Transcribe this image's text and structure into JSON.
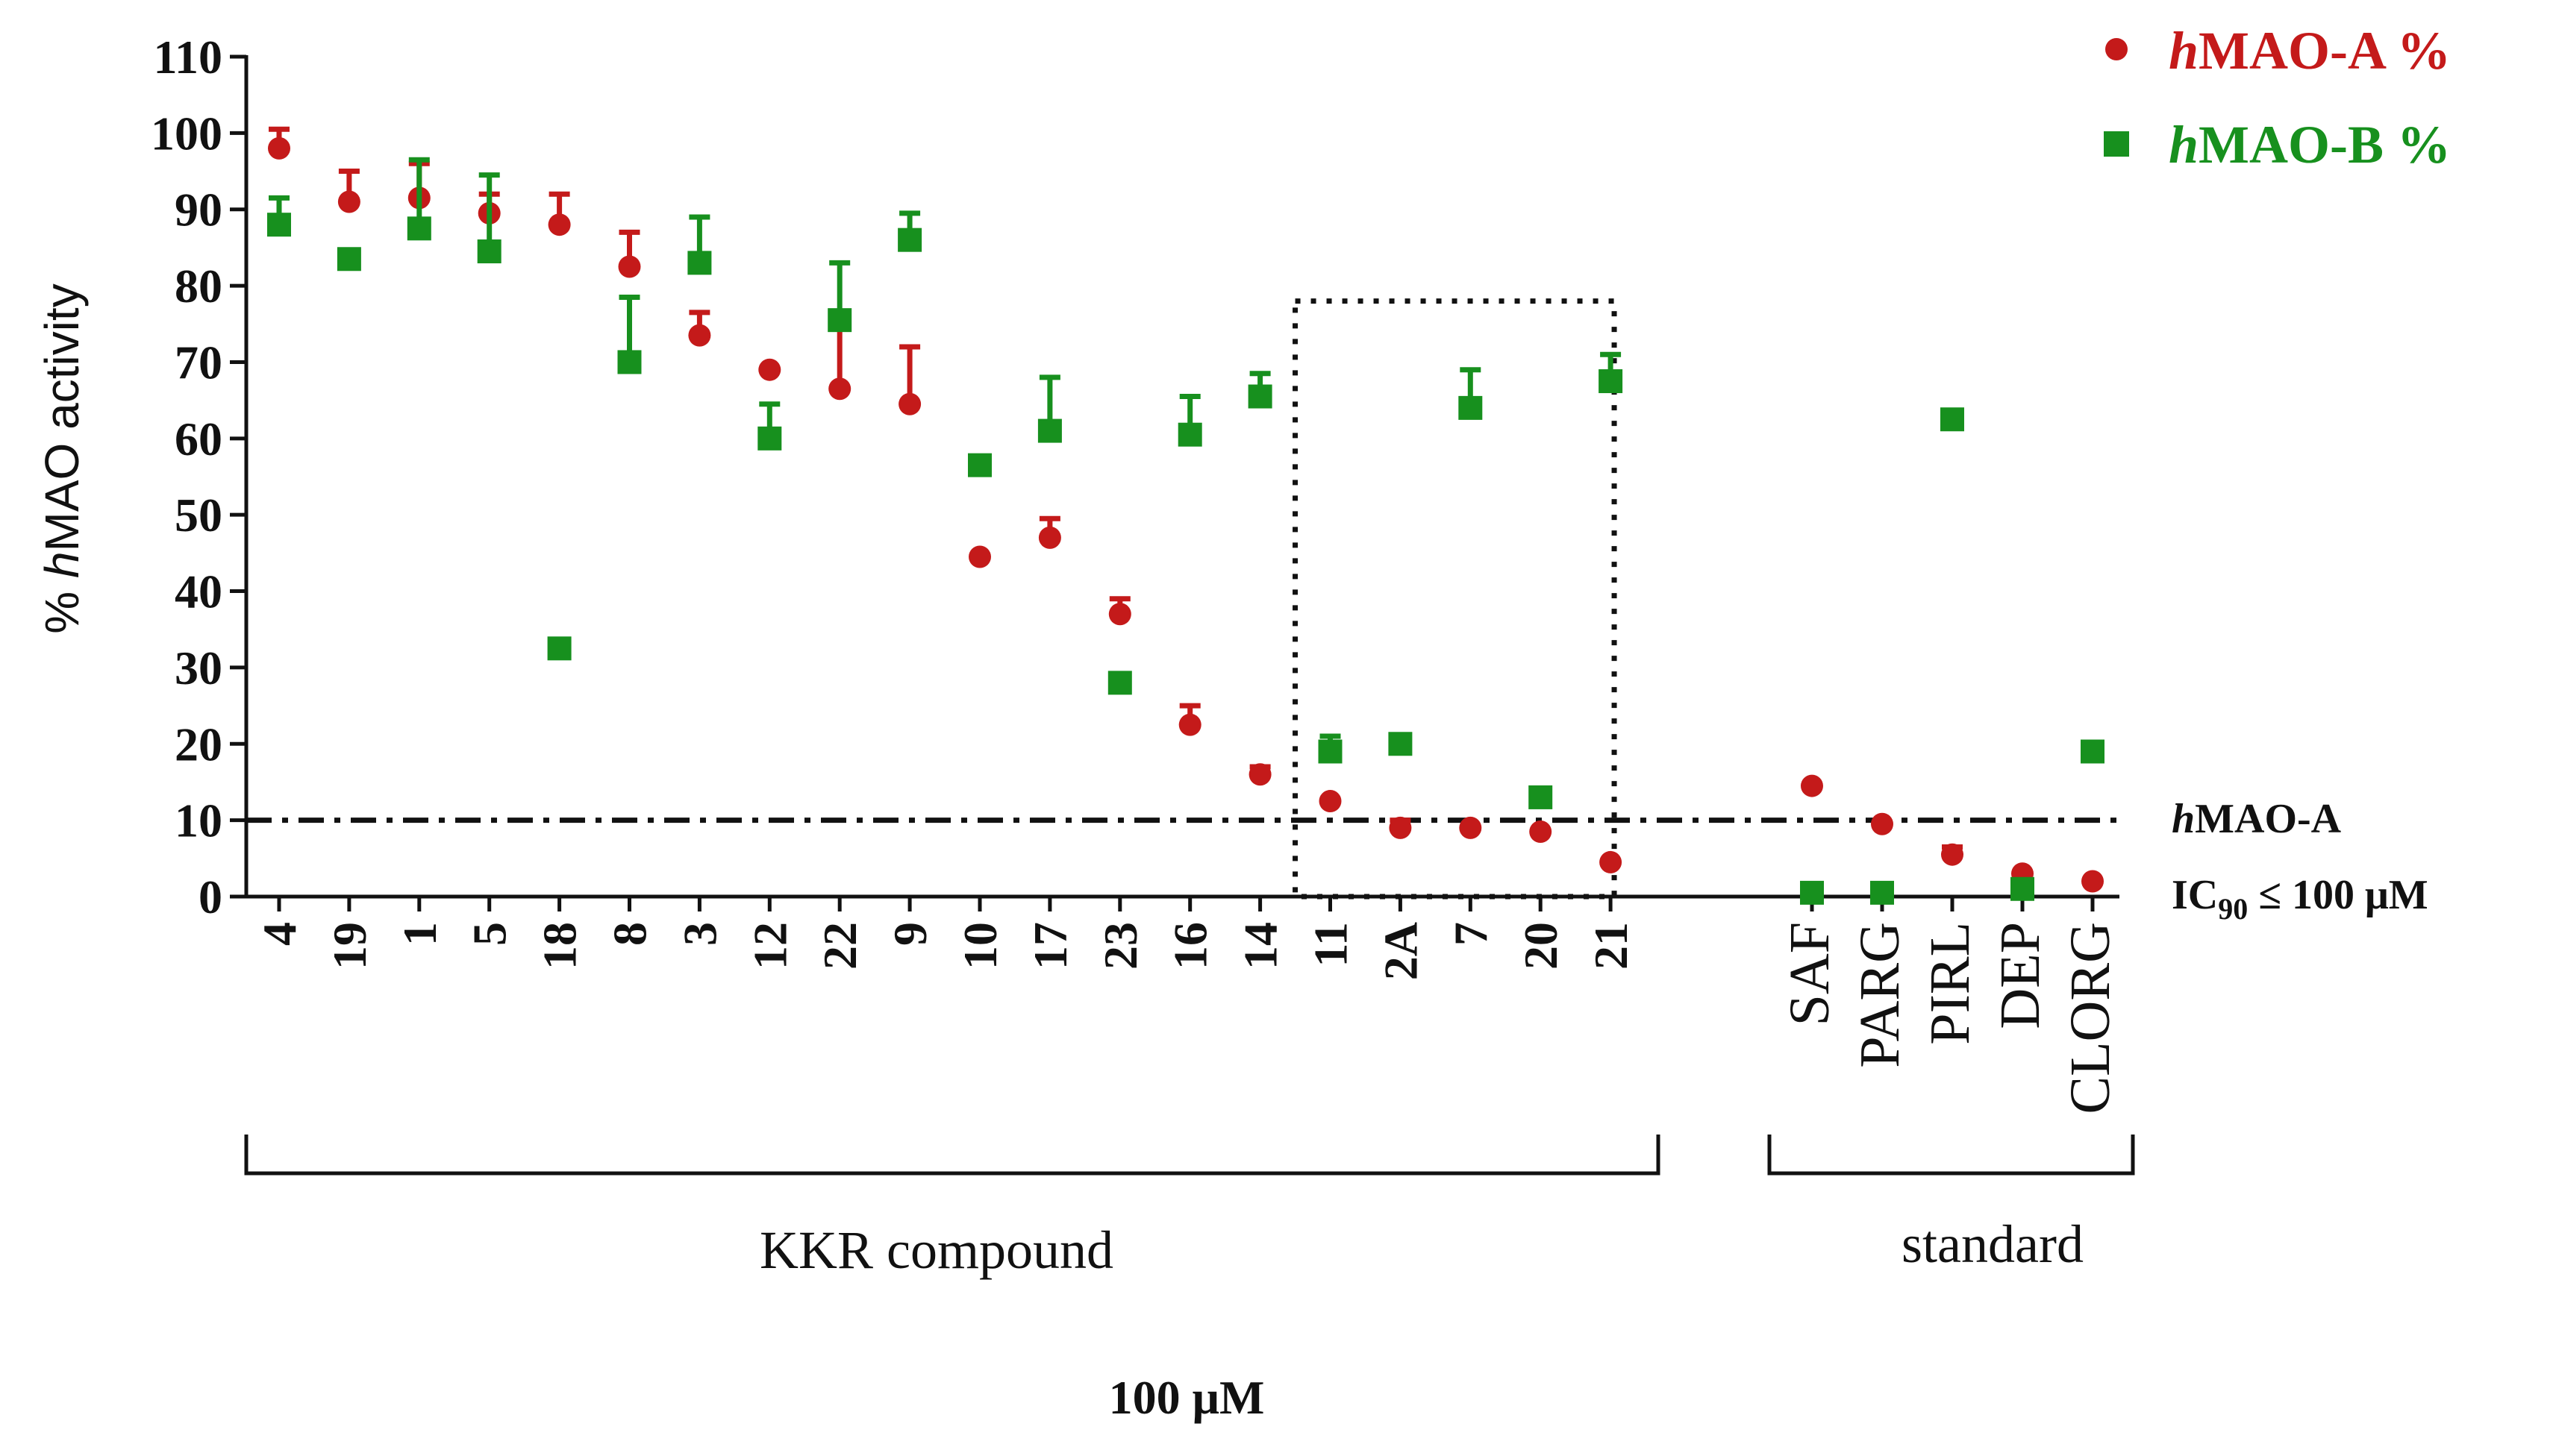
{
  "chart_data": {
    "type": "scatter",
    "ylabel": "% hMAO activity",
    "ylabel_prefix": "% ",
    "ylabel_italic": "h",
    "ylabel_rest": "MAO activity",
    "ylim": [
      0,
      110
    ],
    "yticks": [
      "0",
      "10",
      "20",
      "30",
      "40",
      "50",
      "60",
      "70",
      "80",
      "90",
      "100",
      "110"
    ],
    "ytick_values": [
      0,
      10,
      20,
      30,
      40,
      50,
      60,
      70,
      80,
      90,
      100,
      110
    ],
    "categories": [
      "4",
      "19",
      "1",
      "5",
      "18",
      "8",
      "3",
      "12",
      "22",
      "9",
      "10",
      "17",
      "23",
      "16",
      "14",
      "11",
      "2A",
      "7",
      "20",
      "21",
      "SAF",
      "PARG",
      "PIRL",
      "DEP",
      "CLORG"
    ],
    "series": [
      {
        "name": "hMAO-A %",
        "italic_prefix": "h",
        "label_rest": "MAO-A %",
        "color": "#c41a1a",
        "marker": "circle",
        "values": [
          98,
          91,
          91.5,
          89.5,
          88,
          82.5,
          73.5,
          69,
          66.5,
          64.5,
          44.5,
          47,
          37,
          22.5,
          16,
          12.5,
          9,
          9,
          8.5,
          4.5,
          14.5,
          9.5,
          5.5,
          3,
          2
        ],
        "errors": [
          2.5,
          4,
          4.5,
          2.5,
          4,
          4.5,
          3,
          0,
          9,
          7.5,
          0,
          2.5,
          2,
          2.5,
          1,
          0,
          1,
          0,
          0,
          0,
          0,
          0,
          1,
          0,
          0
        ]
      },
      {
        "name": "hMAO-B %",
        "italic_prefix": "h",
        "label_rest": "MAO-B %",
        "color": "#17901e",
        "marker": "square",
        "values": [
          88,
          83.5,
          87.5,
          84.5,
          32.5,
          70,
          83,
          60,
          75.5,
          86,
          56.5,
          61,
          28,
          60.5,
          65.5,
          19,
          20,
          64,
          13,
          67.5,
          0.5,
          0.5,
          62.5,
          1,
          19
        ],
        "errors": [
          3.5,
          0,
          9,
          10,
          0,
          8.5,
          6,
          4.5,
          7.5,
          3.5,
          0,
          7,
          0,
          5,
          3,
          2,
          0,
          5,
          0,
          3.5,
          0,
          0,
          0,
          0,
          0
        ]
      }
    ],
    "threshold": {
      "value": 10,
      "label_line1": "hMAO-A",
      "label_line1_italic": "h",
      "label_line1_rest": "MAO-A",
      "label_line2": "IC90 ≤ 100 μM",
      "label_line2_main": "IC",
      "label_line2_sub": "90",
      "label_line2_rest": " ≤ 100 μM"
    },
    "highlight_box": {
      "from_category": "11",
      "to_category": "21",
      "y_top": 78
    },
    "groups": [
      {
        "label": "KKR compound",
        "from_category": "4",
        "to_category": "21"
      },
      {
        "label": "standard",
        "from_category": "SAF",
        "to_category": "CLORG"
      }
    ],
    "concentration_label": "100 μM",
    "legend_position": "top-right"
  }
}
